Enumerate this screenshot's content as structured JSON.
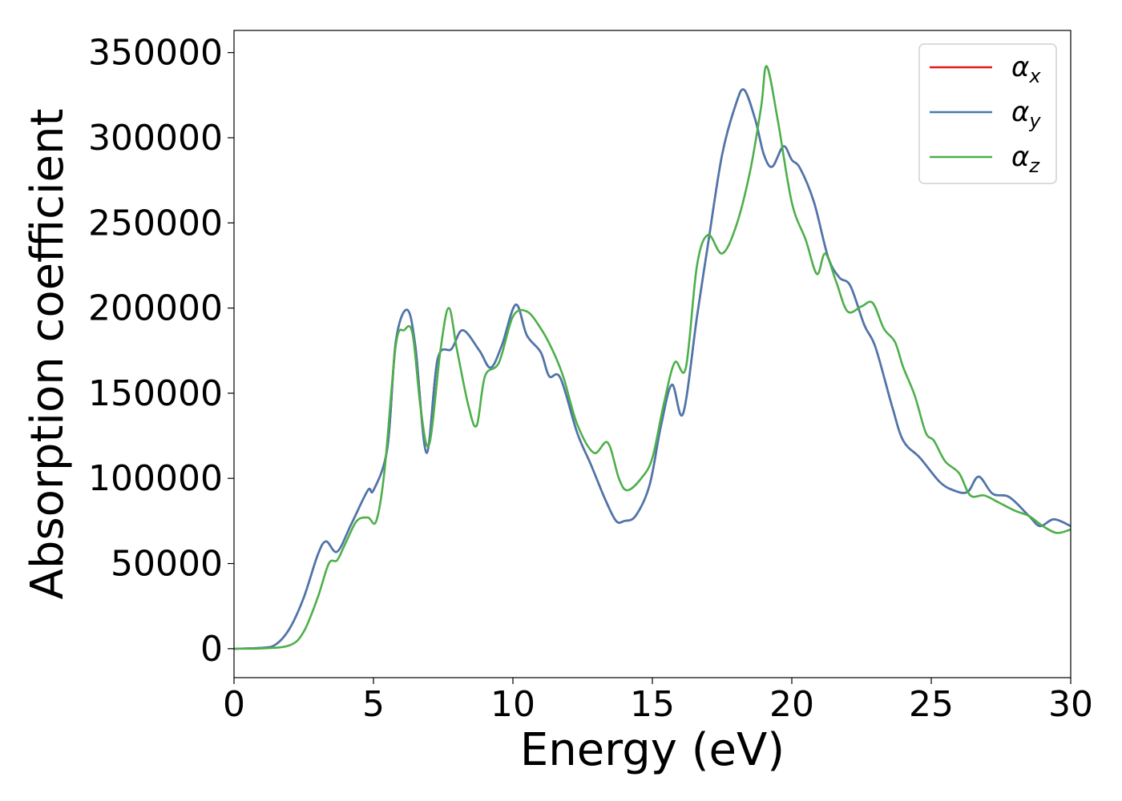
{
  "chart_data": {
    "type": "line",
    "title": "",
    "xlabel": "Energy (eV)",
    "ylabel": "Absorption coefficient",
    "xlim": [
      0,
      30
    ],
    "ylim": [
      -17000,
      363000
    ],
    "xticks": [
      0,
      5,
      10,
      15,
      20,
      25,
      30
    ],
    "yticks": [
      0,
      50000,
      100000,
      150000,
      200000,
      250000,
      300000,
      350000
    ],
    "grid": false,
    "legend_position": "top-right",
    "series": [
      {
        "name": "α",
        "subscript": "x",
        "color": "#e41a1c",
        "x": [
          0,
          1,
          1.5,
          2,
          2.5,
          3,
          3.3,
          3.7,
          4.2,
          4.8,
          5.0,
          5.5,
          5.8,
          6.2,
          6.5,
          6.9,
          7.3,
          7.8,
          8.2,
          8.8,
          9.2,
          9.6,
          10.1,
          10.5,
          11,
          11.3,
          11.7,
          12.3,
          12.8,
          13.3,
          13.7,
          14.0,
          14.4,
          14.9,
          15.3,
          15.7,
          16.1,
          16.6,
          17,
          17.5,
          18.0,
          18.3,
          18.7,
          19.0,
          19.3,
          19.7,
          20.0,
          20.3,
          20.8,
          21.3,
          21.7,
          22.1,
          22.6,
          23.0,
          23.6,
          24.0,
          24.6,
          25.3,
          25.8,
          26.3,
          26.7,
          27.2,
          27.8,
          28.5,
          28.9,
          29.4,
          30
        ],
        "values": [
          0,
          500,
          2500,
          12000,
          30000,
          55000,
          63000,
          57000,
          73000,
          93000,
          93000,
          118000,
          180000,
          199000,
          178000,
          115000,
          170000,
          176000,
          187000,
          175000,
          165000,
          178000,
          202000,
          184000,
          174000,
          160000,
          159000,
          127000,
          108000,
          88000,
          75000,
          75000,
          78000,
          96000,
          130000,
          155000,
          138000,
          195000,
          238000,
          290000,
          320000,
          328000,
          310000,
          290000,
          283000,
          295000,
          287000,
          282000,
          262000,
          230000,
          218000,
          213000,
          190000,
          177000,
          142000,
          122000,
          112000,
          98000,
          93000,
          92000,
          101000,
          91000,
          89000,
          78000,
          72000,
          76000,
          72000
        ]
      },
      {
        "name": "α",
        "subscript": "y",
        "color": "#4878b0",
        "x": [
          0,
          1,
          1.5,
          2,
          2.5,
          3,
          3.3,
          3.7,
          4.2,
          4.8,
          5.0,
          5.5,
          5.8,
          6.2,
          6.5,
          6.9,
          7.3,
          7.8,
          8.2,
          8.8,
          9.2,
          9.6,
          10.1,
          10.5,
          11,
          11.3,
          11.7,
          12.3,
          12.8,
          13.3,
          13.7,
          14.0,
          14.4,
          14.9,
          15.3,
          15.7,
          16.1,
          16.6,
          17,
          17.5,
          18.0,
          18.3,
          18.7,
          19.0,
          19.3,
          19.7,
          20.0,
          20.3,
          20.8,
          21.3,
          21.7,
          22.1,
          22.6,
          23.0,
          23.6,
          24.0,
          24.6,
          25.3,
          25.8,
          26.3,
          26.7,
          27.2,
          27.8,
          28.5,
          28.9,
          29.4,
          30
        ],
        "values": [
          0,
          500,
          2500,
          12000,
          30000,
          55000,
          63000,
          57000,
          73000,
          93000,
          93000,
          118000,
          180000,
          199000,
          178000,
          115000,
          170000,
          176000,
          187000,
          175000,
          165000,
          178000,
          202000,
          184000,
          174000,
          160000,
          159000,
          127000,
          108000,
          88000,
          75000,
          75000,
          78000,
          96000,
          130000,
          155000,
          138000,
          195000,
          238000,
          290000,
          320000,
          328000,
          310000,
          290000,
          283000,
          295000,
          287000,
          282000,
          262000,
          230000,
          218000,
          213000,
          190000,
          177000,
          142000,
          122000,
          112000,
          98000,
          93000,
          92000,
          101000,
          91000,
          89000,
          78000,
          72000,
          76000,
          72000
        ]
      },
      {
        "name": "α",
        "subscript": "z",
        "color": "#4daf4a",
        "x": [
          0,
          1,
          2,
          2.5,
          3,
          3.4,
          3.7,
          4.0,
          4.4,
          4.8,
          5.1,
          5.4,
          5.8,
          6.1,
          6.4,
          6.7,
          7.0,
          7.4,
          7.7,
          8.0,
          8.4,
          8.7,
          9.0,
          9.5,
          10.0,
          10.5,
          11.0,
          11.4,
          11.8,
          12.3,
          12.9,
          13.4,
          13.8,
          14.1,
          14.6,
          15.0,
          15.4,
          15.8,
          16.2,
          16.6,
          17.0,
          17.5,
          18.0,
          18.5,
          18.9,
          19.1,
          19.5,
          20.0,
          20.5,
          20.9,
          21.2,
          21.6,
          22.0,
          22.5,
          22.9,
          23.3,
          23.7,
          24.0,
          24.4,
          24.8,
          25.1,
          25.5,
          26.0,
          26.4,
          26.9,
          27.4,
          28.0,
          28.5,
          29.0,
          29.5,
          30
        ],
        "values": [
          0,
          200,
          2000,
          10000,
          30000,
          50000,
          52000,
          62000,
          75000,
          77000,
          75000,
          105000,
          178000,
          187000,
          185000,
          140000,
          120000,
          175000,
          200000,
          175000,
          143000,
          131000,
          160000,
          168000,
          195000,
          198000,
          188000,
          176000,
          160000,
          132000,
          115000,
          121000,
          100000,
          93000,
          100000,
          112000,
          143000,
          168000,
          165000,
          225000,
          243000,
          232000,
          248000,
          280000,
          318000,
          342000,
          310000,
          262000,
          240000,
          220000,
          232000,
          215000,
          198000,
          201000,
          203000,
          188000,
          180000,
          165000,
          149000,
          127000,
          122000,
          110000,
          103000,
          90000,
          90000,
          86000,
          81000,
          78000,
          72000,
          68000,
          70000
        ]
      }
    ]
  }
}
